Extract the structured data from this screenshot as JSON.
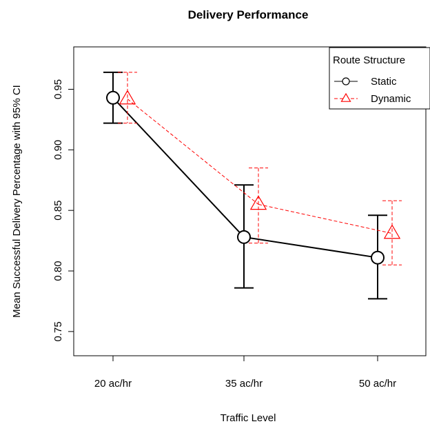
{
  "chart_data": {
    "type": "line",
    "title": "Delivery Performance",
    "xlabel": "Traffic Level",
    "ylabel": "Mean Successful Delivery Percentage with 95% CI",
    "categories": [
      "20 ac/hr",
      "35 ac/hr",
      "50 ac/hr"
    ],
    "ylim": [
      0.73,
      0.985
    ],
    "yticks": [
      0.75,
      0.8,
      0.85,
      0.9,
      0.95
    ],
    "ytick_labels": [
      "0.75",
      "0.80",
      "0.85",
      "0.90",
      "0.95"
    ],
    "legend": {
      "title": "Route Structure",
      "position": "top-right"
    },
    "series": [
      {
        "name": "Static",
        "color": "#000000",
        "marker": "circle",
        "line_style": "solid",
        "values": [
          0.943,
          0.828,
          0.811
        ],
        "ci_lower": [
          0.922,
          0.786,
          0.777
        ],
        "ci_upper": [
          0.964,
          0.871,
          0.846
        ]
      },
      {
        "name": "Dynamic",
        "color": "#ff0000",
        "marker": "triangle",
        "line_style": "dashed",
        "values": [
          0.942,
          0.855,
          0.831
        ],
        "ci_lower": [
          0.922,
          0.823,
          0.805
        ],
        "ci_upper": [
          0.964,
          0.885,
          0.858
        ]
      }
    ],
    "grid": false
  }
}
